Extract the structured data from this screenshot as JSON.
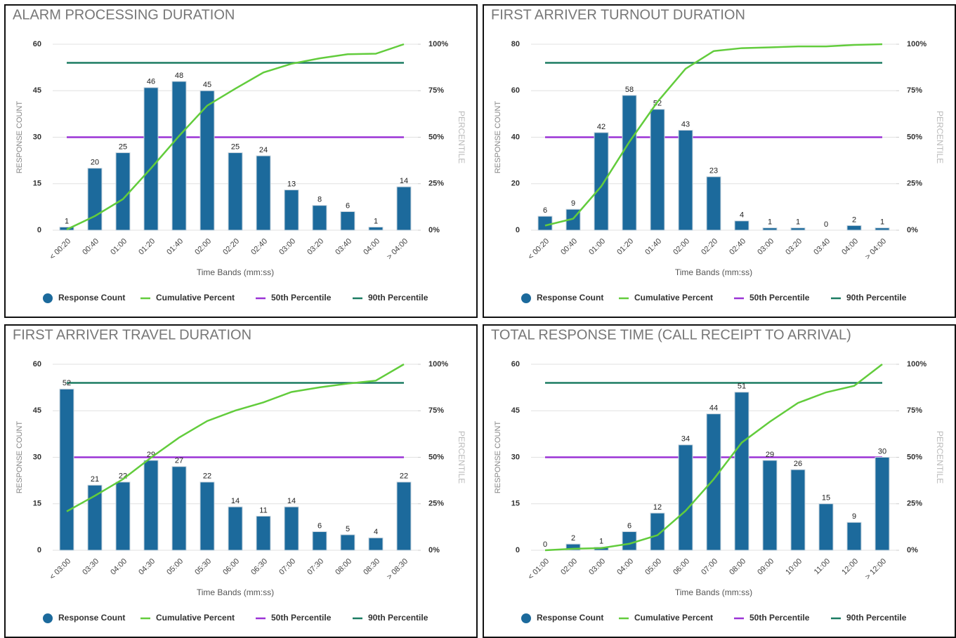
{
  "chart_data": [
    {
      "type": "combo",
      "title": "ALARM PROCESSING DURATION",
      "x_label": "Time Bands (mm:ss)",
      "y_label": "RESPONSE COUNT",
      "y2_label": "PERCENTILE",
      "categories": [
        "< 00:20",
        "00:40",
        "01:00",
        "01:20",
        "01:40",
        "02:00",
        "02:20",
        "02:40",
        "03:00",
        "03:20",
        "03:40",
        "04:00",
        "> 04:00"
      ],
      "ylim": [
        0,
        60
      ],
      "yticks": [
        0,
        15,
        30,
        45,
        60
      ],
      "y2lim": [
        0,
        100
      ],
      "y2ticks": [
        {
          "value": 0,
          "label": "0%"
        },
        {
          "value": 25,
          "label": "25%"
        },
        {
          "value": 50,
          "label": "50%"
        },
        {
          "value": 75,
          "label": "75%"
        },
        {
          "value": 100,
          "label": "100%"
        }
      ],
      "grid": true,
      "series": [
        {
          "name": "Response Count",
          "type": "bar",
          "color": "#1c6a9c",
          "values": [
            1,
            20,
            25,
            46,
            48,
            45,
            25,
            24,
            13,
            8,
            6,
            1,
            14
          ]
        },
        {
          "name": "Cumulative Percent",
          "type": "line",
          "axis": "y2",
          "color": "#62cc3c",
          "values": [
            0.4,
            7.6,
            16.7,
            33.3,
            50.7,
            67.0,
            76.1,
            84.8,
            89.5,
            92.4,
            94.6,
            94.9,
            100
          ]
        },
        {
          "name": "50th Percentile",
          "type": "hline",
          "axis": "y2",
          "color": "#9b33d6",
          "value": 50
        },
        {
          "name": "90th Percentile",
          "type": "hline",
          "axis": "y2",
          "color": "#1b7c62",
          "value": 90
        }
      ]
    },
    {
      "type": "combo",
      "title": "FIRST ARRIVER TURNOUT DURATION",
      "x_label": "Time Bands (mm:ss)",
      "y_label": "RESPONSE COUNT",
      "y2_label": "PERCENTILE",
      "categories": [
        "< 00:20",
        "00:40",
        "01:00",
        "01:20",
        "01:40",
        "02:00",
        "02:20",
        "02:40",
        "03:00",
        "03:20",
        "03:40",
        "04:00",
        "> 04:00"
      ],
      "ylim": [
        0,
        80
      ],
      "yticks": [
        0,
        20,
        40,
        60,
        80
      ],
      "y2lim": [
        0,
        100
      ],
      "y2ticks": [
        {
          "value": 0,
          "label": "0%"
        },
        {
          "value": 25,
          "label": "25%"
        },
        {
          "value": 50,
          "label": "50%"
        },
        {
          "value": 75,
          "label": "75%"
        },
        {
          "value": 100,
          "label": "100%"
        }
      ],
      "grid": true,
      "series": [
        {
          "name": "Response Count",
          "type": "bar",
          "color": "#1c6a9c",
          "values": [
            6,
            9,
            42,
            58,
            52,
            43,
            23,
            4,
            1,
            1,
            0,
            2,
            1
          ]
        },
        {
          "name": "Cumulative Percent",
          "type": "line",
          "axis": "y2",
          "color": "#62cc3c",
          "values": [
            2.5,
            6.2,
            23.6,
            47.5,
            69.0,
            86.8,
            96.3,
            97.9,
            98.3,
            98.8,
            98.8,
            99.6,
            100
          ]
        },
        {
          "name": "50th Percentile",
          "type": "hline",
          "axis": "y2",
          "color": "#9b33d6",
          "value": 50
        },
        {
          "name": "90th Percentile",
          "type": "hline",
          "axis": "y2",
          "color": "#1b7c62",
          "value": 90
        }
      ]
    },
    {
      "type": "combo",
      "title": "FIRST ARRIVER TRAVEL DURATION",
      "x_label": "Time Bands (mm:ss)",
      "y_label": "RESPONSE COUNT",
      "y2_label": "PERCENTILE",
      "categories": [
        "< 03:00",
        "03:30",
        "04:00",
        "04:30",
        "05:00",
        "05:30",
        "06:00",
        "06:30",
        "07:00",
        "07:30",
        "08:00",
        "08:30",
        "> 08:30"
      ],
      "ylim": [
        0,
        60
      ],
      "yticks": [
        0,
        15,
        30,
        45,
        60
      ],
      "y2lim": [
        0,
        100
      ],
      "y2ticks": [
        {
          "value": 0,
          "label": "0%"
        },
        {
          "value": 25,
          "label": "25%"
        },
        {
          "value": 50,
          "label": "50%"
        },
        {
          "value": 75,
          "label": "75%"
        },
        {
          "value": 100,
          "label": "100%"
        }
      ],
      "grid": true,
      "series": [
        {
          "name": "Response Count",
          "type": "bar",
          "color": "#1c6a9c",
          "values": [
            52,
            21,
            22,
            29,
            27,
            22,
            14,
            11,
            14,
            6,
            5,
            4,
            22
          ]
        },
        {
          "name": "Cumulative Percent",
          "type": "line",
          "axis": "y2",
          "color": "#62cc3c",
          "values": [
            20.9,
            29.3,
            38.2,
            49.8,
            60.6,
            69.5,
            75.1,
            79.5,
            85.1,
            87.6,
            89.6,
            91.2,
            100
          ]
        },
        {
          "name": "50th Percentile",
          "type": "hline",
          "axis": "y2",
          "color": "#9b33d6",
          "value": 50
        },
        {
          "name": "90th Percentile",
          "type": "hline",
          "axis": "y2",
          "color": "#1b7c62",
          "value": 90
        }
      ]
    },
    {
      "type": "combo",
      "title": "TOTAL RESPONSE TIME (CALL RECEIPT TO ARRIVAL)",
      "x_label": "Time Bands (mm:ss)",
      "y_label": "RESPONSE COUNT",
      "y2_label": "PERCENTILE",
      "categories": [
        "< 01:00",
        "02:00",
        "03:00",
        "04:00",
        "05:00",
        "06:00",
        "07:00",
        "08:00",
        "09:00",
        "10:00",
        "11:00",
        "12:00",
        "> 12:00"
      ],
      "ylim": [
        0,
        60
      ],
      "yticks": [
        0,
        15,
        30,
        45,
        60
      ],
      "y2lim": [
        0,
        100
      ],
      "y2ticks": [
        {
          "value": 0,
          "label": "0%"
        },
        {
          "value": 25,
          "label": "25%"
        },
        {
          "value": 50,
          "label": "50%"
        },
        {
          "value": 75,
          "label": "75%"
        },
        {
          "value": 100,
          "label": "100%"
        }
      ],
      "grid": true,
      "series": [
        {
          "name": "Response Count",
          "type": "bar",
          "color": "#1c6a9c",
          "values": [
            0,
            2,
            1,
            6,
            12,
            34,
            44,
            51,
            29,
            26,
            15,
            9,
            30
          ]
        },
        {
          "name": "Cumulative Percent",
          "type": "line",
          "axis": "y2",
          "color": "#62cc3c",
          "values": [
            0,
            0.8,
            1.2,
            3.5,
            8.1,
            21.2,
            38.2,
            57.9,
            69.1,
            79.2,
            84.9,
            88.4,
            100
          ]
        },
        {
          "name": "50th Percentile",
          "type": "hline",
          "axis": "y2",
          "color": "#9b33d6",
          "value": 50
        },
        {
          "name": "90th Percentile",
          "type": "hline",
          "axis": "y2",
          "color": "#1b7c62",
          "value": 90
        }
      ]
    }
  ]
}
